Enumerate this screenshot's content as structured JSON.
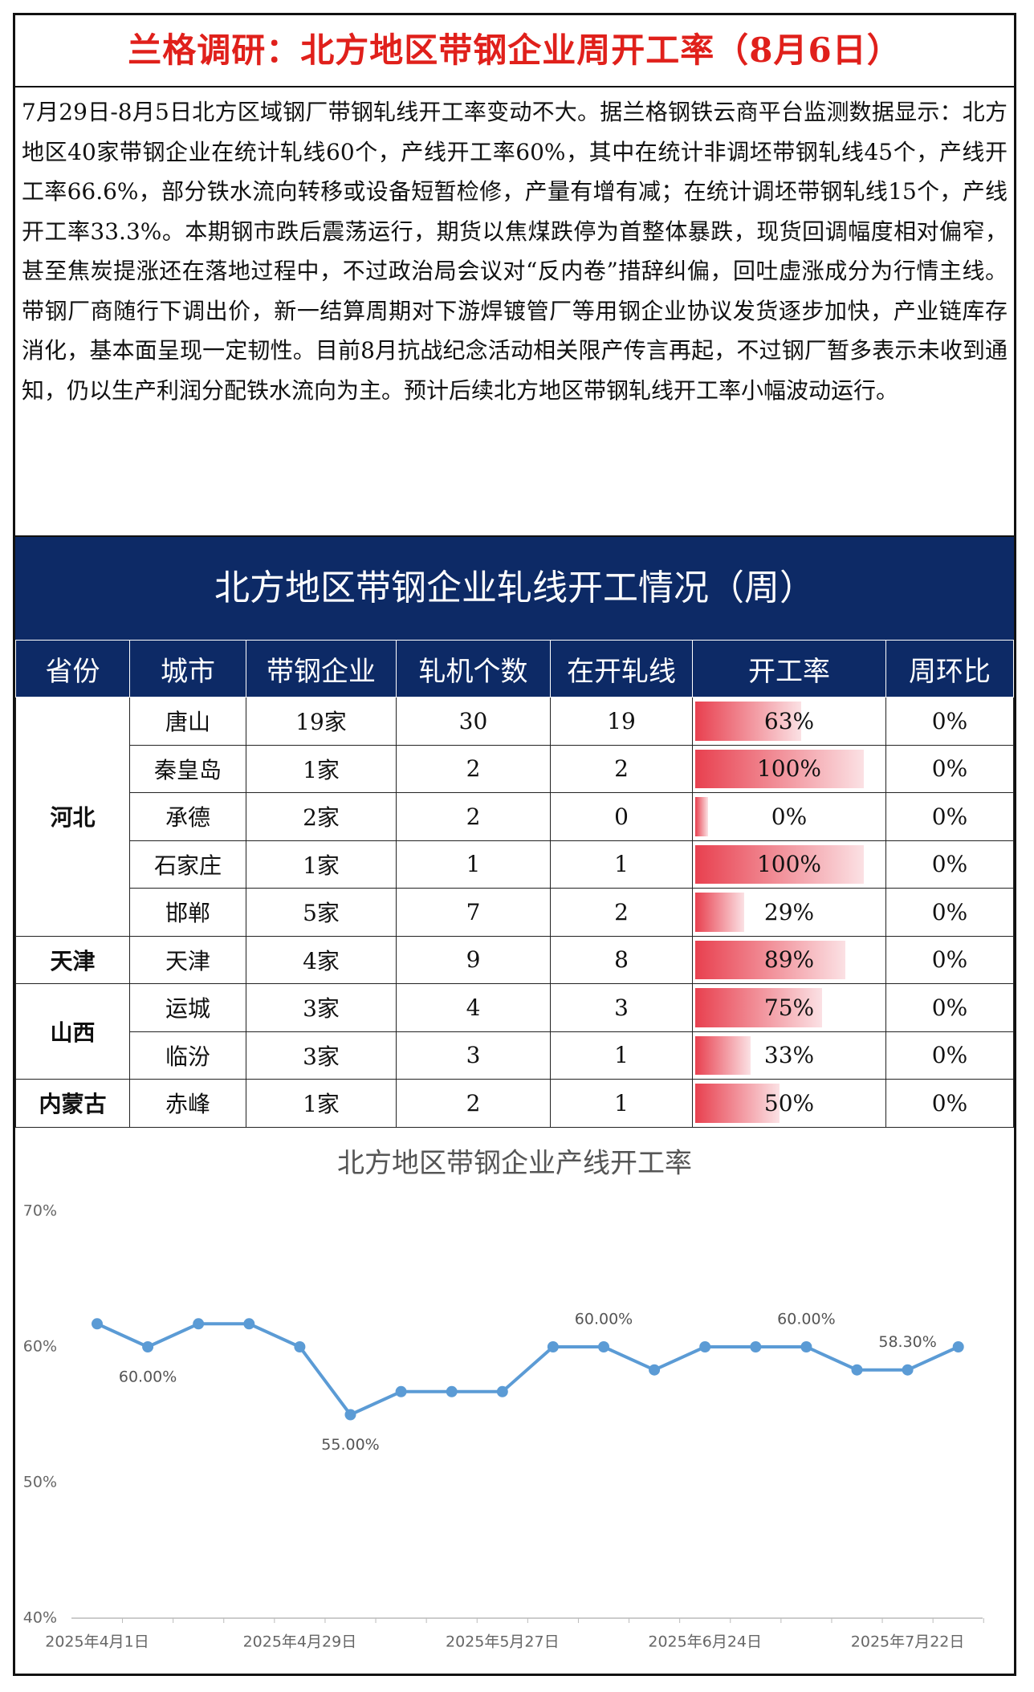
{
  "header": {
    "title": "兰格调研：北方地区带钢企业周开工率（8月6日）"
  },
  "body": {
    "text": "7月29日-8月5日北方区域钢厂带钢轧线开工率变动不大。据兰格钢铁云商平台监测数据显示：北方地区40家带钢企业在统计轧线60个，产线开工率60%，其中在统计非调坯带钢轧线45个，产线开工率66.6%，部分铁水流向转移或设备短暂检修，产量有增有减；在统计调坯带钢轧线15个，产线开工率33.3%。本期钢市跌后震荡运行，期货以焦煤跌停为首整体暴跌，现货回调幅度相对偏窄，甚至焦炭提涨还在落地过程中，不过政治局会议对“反内卷”措辞纠偏，回吐虚涨成分为行情主线。带钢厂商随行下调出价，新一结算周期对下游焊镀管厂等用钢企业协议发货逐步加快，产业链库存消化，基本面呈现一定韧性。目前8月抗战纪念活动相关限产传言再起，不过钢厂暂多表示未收到通知，仍以生产利润分配铁水流向为主。预计后续北方地区带钢轧线开工率小幅波动运行。"
  },
  "table": {
    "title": "北方地区带钢企业轧线开工情况（周）",
    "columns": [
      "省份",
      "城市",
      "带钢企业",
      "轧机个数",
      "在开轧线",
      "开工率",
      "周环比"
    ],
    "groups": [
      {
        "province": "河北",
        "rows": [
          {
            "city": "唐山",
            "companies": "19家",
            "mills": 30,
            "open": 19,
            "rate": 63,
            "rate_label": "63%",
            "wow": "0%"
          },
          {
            "city": "秦皇岛",
            "companies": "1家",
            "mills": 2,
            "open": 2,
            "rate": 100,
            "rate_label": "100%",
            "wow": "0%"
          },
          {
            "city": "承德",
            "companies": "2家",
            "mills": 2,
            "open": 0,
            "rate": 0,
            "rate_label": "0%",
            "wow": "0%"
          },
          {
            "city": "石家庄",
            "companies": "1家",
            "mills": 1,
            "open": 1,
            "rate": 100,
            "rate_label": "100%",
            "wow": "0%"
          },
          {
            "city": "邯郸",
            "companies": "5家",
            "mills": 7,
            "open": 2,
            "rate": 29,
            "rate_label": "29%",
            "wow": "0%"
          }
        ]
      },
      {
        "province": "天津",
        "rows": [
          {
            "city": "天津",
            "companies": "4家",
            "mills": 9,
            "open": 8,
            "rate": 89,
            "rate_label": "89%",
            "wow": "0%"
          }
        ]
      },
      {
        "province": "山西",
        "rows": [
          {
            "city": "运城",
            "companies": "3家",
            "mills": 4,
            "open": 3,
            "rate": 75,
            "rate_label": "75%",
            "wow": "0%"
          },
          {
            "city": "临汾",
            "companies": "3家",
            "mills": 3,
            "open": 1,
            "rate": 33,
            "rate_label": "33%",
            "wow": "0%"
          }
        ]
      },
      {
        "province": "内蒙古",
        "rows": [
          {
            "city": "赤峰",
            "companies": "1家",
            "mills": 2,
            "open": 1,
            "rate": 50,
            "rate_label": "50%",
            "wow": "0%"
          }
        ]
      }
    ]
  },
  "chart_data": {
    "type": "line",
    "title": "北方地区带钢企业产线开工率",
    "categories": [
      "2025年4月1日",
      null,
      null,
      null,
      "2025年4月29日",
      null,
      null,
      null,
      "2025年5月27日",
      null,
      null,
      null,
      "2025年6月24日",
      null,
      null,
      null,
      "2025年7月22日",
      null
    ],
    "series": [
      {
        "name": "开工率",
        "color": "#5b9bd5",
        "values": [
          61.7,
          60,
          61.7,
          61.7,
          60,
          55,
          56.7,
          56.7,
          56.7,
          60,
          60,
          58.3,
          60,
          60,
          60,
          58.3,
          58.3,
          60
        ],
        "value_labels": [
          null,
          "60.00%",
          null,
          null,
          null,
          "55.00%",
          null,
          null,
          null,
          null,
          "60.00%",
          null,
          null,
          null,
          "60.00%",
          null,
          "58.30%",
          null
        ]
      }
    ],
    "ylim": [
      40,
      70
    ],
    "yticks": [
      {
        "value": 40,
        "label": "40%"
      },
      {
        "value": 50,
        "label": "50%"
      },
      {
        "value": 60,
        "label": "60%"
      },
      {
        "value": 70,
        "label": "70%"
      }
    ]
  }
}
